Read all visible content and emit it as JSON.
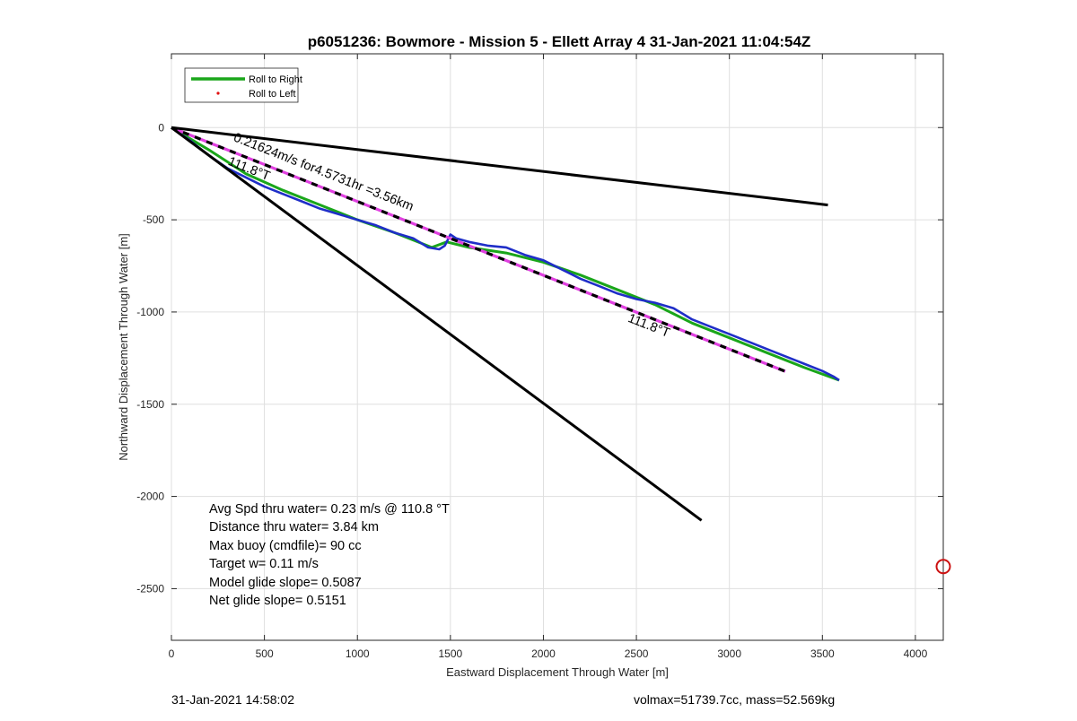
{
  "colors": {
    "track": "#1f2ec8",
    "roll_right": "#1aa61a",
    "roll_left": "#e01010",
    "fit_dash": "#e040e0",
    "bounds": "#000000",
    "target_marker": "#cc1111"
  },
  "chart_data": {
    "type": "line",
    "title": "p6051236: Bowmore - Mission 5 - Ellett Array 4 31-Jan-2021 11:04:54Z",
    "xlabel": "Eastward Displacement Through Water [m]",
    "ylabel": "Northward Displacement Through Water [m]",
    "xlim": [
      0,
      4150
    ],
    "ylim": [
      -2780,
      400
    ],
    "xticks": [
      0,
      500,
      1000,
      1500,
      2000,
      2500,
      3000,
      3500,
      4000
    ],
    "yticks": [
      0,
      -500,
      -1000,
      -1500,
      -2000,
      -2500
    ],
    "grid": true,
    "legend_position": "top-left",
    "legend": [
      "Roll to Right",
      "Roll to Left"
    ],
    "series": [
      {
        "name": "Roll to Right",
        "style": "solid-green",
        "x": [
          0,
          200,
          400,
          600,
          800,
          1000,
          1200,
          1400,
          1480,
          1600,
          1800,
          2000,
          2200,
          2400,
          2600,
          2800,
          3000,
          3200,
          3400,
          3590
        ],
        "y": [
          0,
          -120,
          -250,
          -340,
          -420,
          -500,
          -570,
          -650,
          -620,
          -650,
          -680,
          -730,
          -800,
          -880,
          -960,
          -1060,
          -1140,
          -1220,
          -1300,
          -1370
        ]
      },
      {
        "name": "Roll to Left",
        "style": "red-dots",
        "x": [],
        "y": []
      },
      {
        "name": "",
        "style": "solid-blue",
        "x": [
          0,
          100,
          200,
          300,
          400,
          500,
          600,
          700,
          800,
          900,
          1000,
          1100,
          1200,
          1300,
          1380,
          1440,
          1470,
          1490,
          1500,
          1530,
          1600,
          1700,
          1800,
          1900,
          2000,
          2100,
          2200,
          2300,
          2400,
          2500,
          2600,
          2700,
          2800,
          2900,
          3000,
          3100,
          3200,
          3300,
          3400,
          3500,
          3560,
          3590
        ],
        "y": [
          0,
          -70,
          -150,
          -220,
          -270,
          -320,
          -360,
          -400,
          -440,
          -470,
          -500,
          -530,
          -570,
          -600,
          -650,
          -660,
          -640,
          -600,
          -580,
          -600,
          -620,
          -640,
          -650,
          -690,
          -720,
          -770,
          -820,
          -860,
          -900,
          -930,
          -950,
          -980,
          -1040,
          -1080,
          -1120,
          -1160,
          -1200,
          -1240,
          -1280,
          -1320,
          -1350,
          -1370
        ]
      },
      {
        "name": "",
        "style": "dashed-magenta-black",
        "x": [
          0,
          3300
        ],
        "y": [
          0,
          -1322
        ]
      },
      {
        "name": "",
        "style": "solid-black",
        "x": [
          0,
          3530
        ],
        "y": [
          0,
          -420
        ]
      },
      {
        "name": "",
        "style": "solid-black",
        "x": [
          0,
          2850
        ],
        "y": [
          0,
          -2130
        ]
      },
      {
        "name": "",
        "style": "red-circle-marker",
        "x": [
          4150
        ],
        "y": [
          -2380
        ]
      }
    ],
    "annotations": [
      {
        "text": "0.21624m/s for4.5731hr =3.56km",
        "x": 330,
        "y": -70,
        "angle": 21.5
      },
      {
        "text": "111.8°T",
        "x": 300,
        "y": -200,
        "angle": 21.5
      },
      {
        "text": "111.8°T",
        "x": 2450,
        "y": -1050,
        "angle": 21.5
      }
    ],
    "stats": [
      "Avg Spd thru water=  0.23 m/s @ 110.8 °T",
      "Distance thru water=  3.84 km",
      "Max buoy (cmdfile)= 90 cc",
      "Target w= 0.11 m/s",
      "Model glide slope= 0.5087",
      "Net glide slope= 0.5151"
    ]
  },
  "footer": {
    "left": "31-Jan-2021 14:58:02",
    "right": "volmax=51739.7cc, mass=52.569kg"
  }
}
